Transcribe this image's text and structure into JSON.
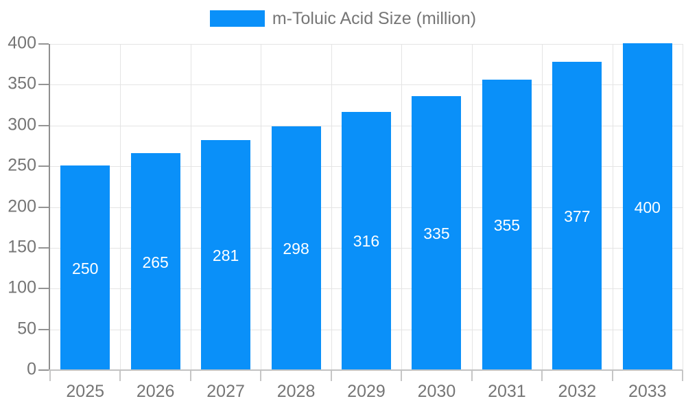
{
  "chart_data": {
    "type": "bar",
    "legend": {
      "position": "top",
      "label": "m-Toluic Acid Size (million)"
    },
    "series_name": "m-Toluic Acid Size (million)",
    "categories": [
      "2025",
      "2026",
      "2027",
      "2028",
      "2029",
      "2030",
      "2031",
      "2032",
      "2033"
    ],
    "values": [
      250,
      265,
      281,
      298,
      316,
      335,
      355,
      377,
      400
    ],
    "data_labels": [
      "250",
      "265",
      "281",
      "298",
      "316",
      "335",
      "355",
      "377",
      "400"
    ],
    "xlabel": "",
    "ylabel": "",
    "ylim": [
      0,
      400
    ],
    "yticks": [
      0,
      50,
      100,
      150,
      200,
      250,
      300,
      350,
      400
    ],
    "grid": true,
    "bar_color": "#0a90f9",
    "value_label_color": "#ffffff",
    "axis_label_color": "#757575",
    "legend_text_color": "#767676"
  }
}
